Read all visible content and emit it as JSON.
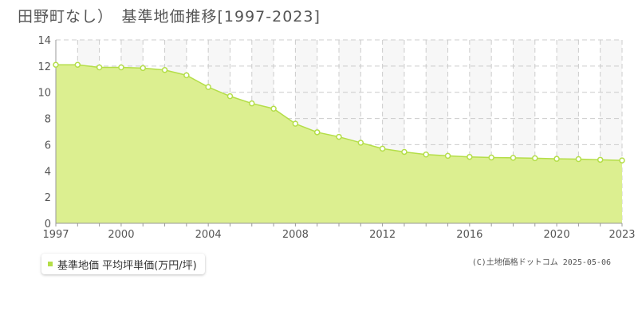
{
  "colors": {
    "fill": "#dcef90",
    "line": "#b4de48",
    "marker_fill": "#ffffff",
    "grid": "#cccccc",
    "axis": "#999999",
    "text": "#555555",
    "plot_bg_even": "#ffffff",
    "plot_bg_odd": "#f7f7f7"
  },
  "footer": {
    "copyright": "(C)土地価格ドットコム 2025-05-06"
  },
  "chart_data": {
    "type": "area",
    "title": "田野町なし）　基準地価推移[1997-2023]",
    "xlabel": "",
    "ylabel": "",
    "x": [
      1997,
      1998,
      1999,
      2000,
      2001,
      2002,
      2003,
      2004,
      2005,
      2006,
      2007,
      2008,
      2009,
      2010,
      2011,
      2012,
      2013,
      2014,
      2015,
      2016,
      2017,
      2018,
      2019,
      2020,
      2021,
      2022,
      2023
    ],
    "xlim": [
      1997,
      2023
    ],
    "xticks": [
      "1997",
      "2000",
      "2004",
      "2008",
      "2012",
      "2016",
      "2020",
      "2023"
    ],
    "ylim": [
      0,
      14
    ],
    "yticks": [
      "0",
      "2",
      "4",
      "6",
      "8",
      "10",
      "12",
      "14"
    ],
    "grid": true,
    "legend_position": "bottom-left",
    "series": [
      {
        "name": "基準地価 平均坪単価(万円/坪)",
        "values": [
          12.1,
          12.1,
          11.9,
          11.9,
          11.85,
          11.7,
          11.3,
          10.4,
          9.7,
          9.15,
          8.75,
          7.6,
          6.95,
          6.6,
          6.15,
          5.7,
          5.45,
          5.25,
          5.15,
          5.07,
          5.02,
          5.0,
          4.97,
          4.92,
          4.9,
          4.85,
          4.8
        ]
      }
    ]
  }
}
